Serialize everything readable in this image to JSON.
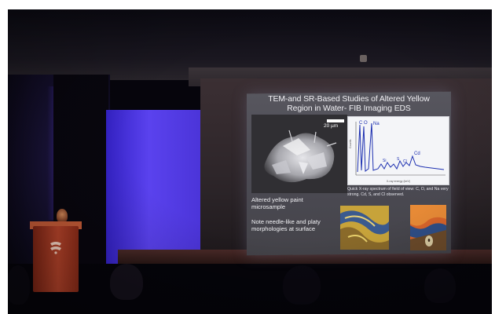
{
  "slide": {
    "title_line1": "TEM-and SR-Based Studies of Altered Yellow",
    "title_line2": "Region in Water- FIB Imaging EDS",
    "scale_label": "20 µm",
    "eds_text": "Quick X-ray spectrum of field of view: C, O, and Na very strong. Cd, S, and Cl observed.",
    "caption_sample": "Altered yellow paint microsample",
    "caption_morphology": "Note needle-like and platy morphologies at surface",
    "spectrum": {
      "peak_labels": [
        "C",
        "O",
        "Na",
        "Si",
        "S",
        "Cl",
        "Cd"
      ],
      "xlabel": "X-ray energy (keV)",
      "ylabel": "Counts"
    }
  },
  "colors": {
    "blue_panel": "#4b34d8",
    "podium": "#b4432a",
    "slide_bg": "#504f57",
    "spectrum_line": "#1c2fb0"
  },
  "icons": {
    "podium_logo": "university-logo-icon"
  }
}
